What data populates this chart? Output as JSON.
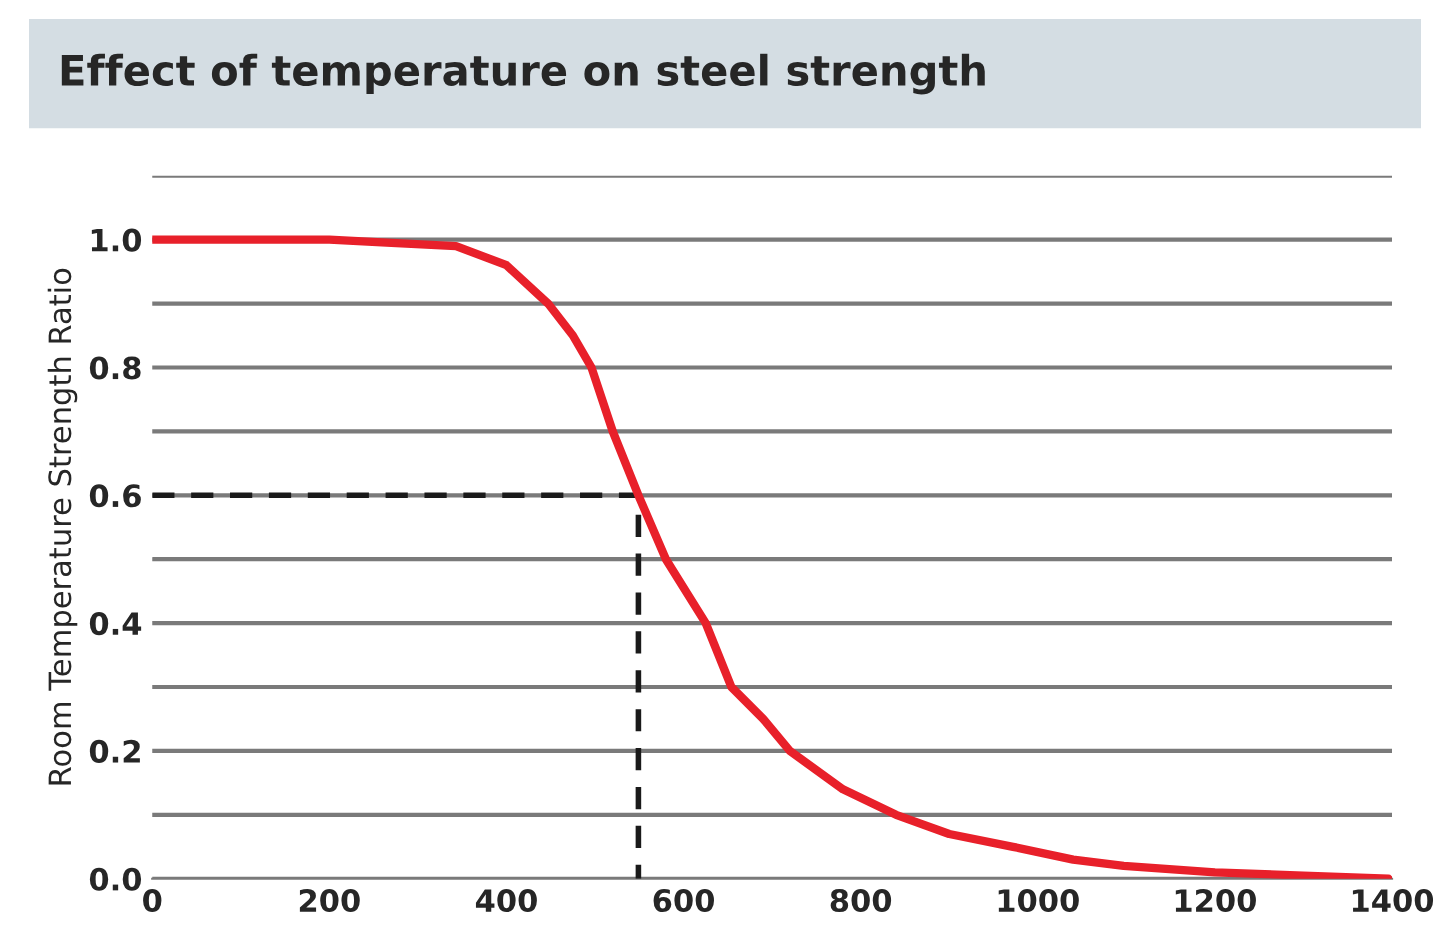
{
  "chart_data": {
    "type": "line",
    "title": "Effect of temperature on steel strength",
    "ylabel": "Room Temperature Strength Ratio",
    "xlim": [
      0,
      1400
    ],
    "xticks": [
      0,
      200,
      400,
      600,
      800,
      1000,
      1200,
      1400
    ],
    "ylim": [
      0,
      1.1
    ],
    "yticks": [
      {
        "value": 0,
        "label": "0.0"
      },
      {
        "value": 0.1,
        "label": null
      },
      {
        "value": 0.2,
        "label": "0.2"
      },
      {
        "value": 0.3,
        "label": null
      },
      {
        "value": 0.4,
        "label": "0.4"
      },
      {
        "value": 0.5,
        "label": null
      },
      {
        "value": 0.6,
        "label": "0.6"
      },
      {
        "value": 0.7,
        "label": null
      },
      {
        "value": 0.8,
        "label": "0.8"
      },
      {
        "value": 0.9,
        "label": null
      },
      {
        "value": 1.0,
        "label": "1.0"
      },
      {
        "value": 1.1,
        "label": null
      }
    ],
    "grid": "y",
    "series": [
      {
        "color": "#e8202a",
        "line_style": "solid",
        "x": [
          0,
          100,
          200,
          270,
          343,
          400,
          447,
          475,
          496,
          520,
          549,
          580,
          625,
          654,
          690,
          720,
          780,
          840,
          900,
          972,
          1040,
          1097,
          1200,
          1300,
          1396
        ],
        "values": [
          1.0,
          1.0,
          1.0,
          0.995,
          0.99,
          0.96,
          0.9,
          0.85,
          0.8,
          0.7,
          0.6,
          0.5,
          0.4,
          0.3,
          0.25,
          0.2,
          0.14,
          0.1,
          0.07,
          0.05,
          0.03,
          0.02,
          0.01,
          0.005,
          0.0
        ]
      },
      {
        "color": "#1a1a1a",
        "line_style": "dashed",
        "x": [
          0,
          549,
          549
        ],
        "values": [
          0.6,
          0.6,
          0
        ]
      }
    ]
  }
}
